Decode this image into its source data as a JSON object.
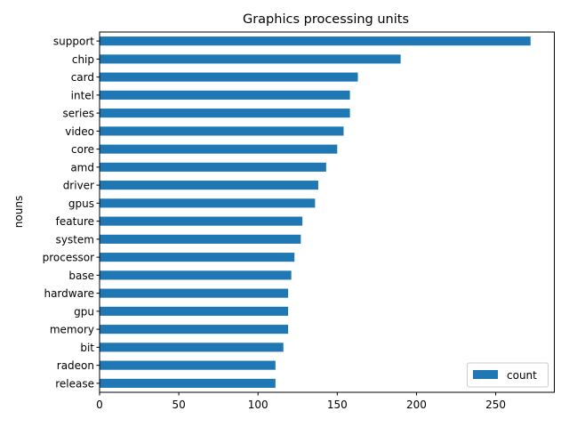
{
  "chart_data": {
    "type": "bar",
    "orientation": "horizontal",
    "title": "Graphics processing units",
    "xlabel": "",
    "ylabel": "nouns",
    "categories": [
      "support",
      "chip",
      "card",
      "intel",
      "series",
      "video",
      "core",
      "amd",
      "driver",
      "gpus",
      "feature",
      "system",
      "processor",
      "base",
      "hardware",
      "gpu",
      "memory",
      "bit",
      "radeon",
      "release"
    ],
    "series": [
      {
        "name": "count",
        "values": [
          272,
          190,
          163,
          158,
          158,
          154,
          150,
          143,
          138,
          136,
          128,
          127,
          123,
          121,
          119,
          119,
          119,
          116,
          111,
          111
        ]
      }
    ],
    "xlim": [
      0,
      287
    ],
    "xticks": [
      0,
      50,
      100,
      150,
      200,
      250
    ],
    "grid": false,
    "legend_position": "lower-right",
    "bar_color": "#1f77b4"
  }
}
